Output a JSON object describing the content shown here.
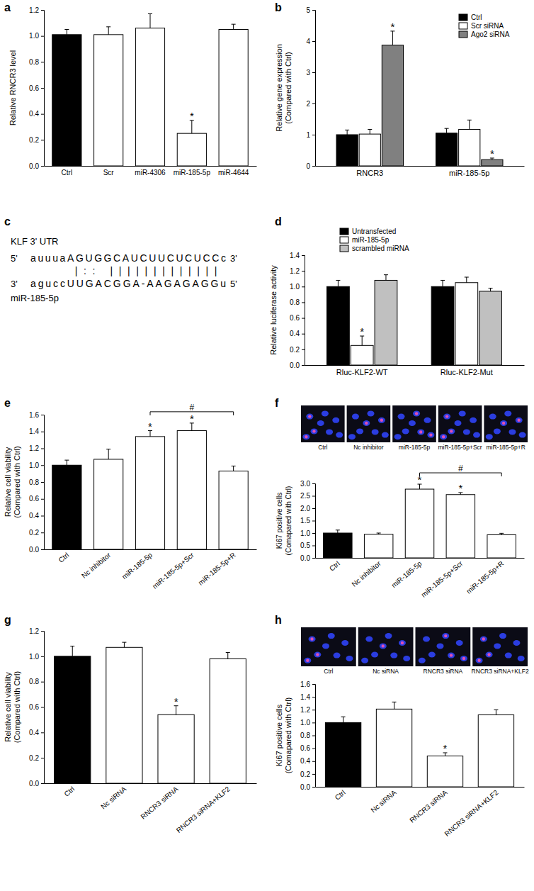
{
  "chart_data": [
    {
      "type": "bar",
      "title": "a",
      "categories": [
        "Ctrl",
        "Scr",
        "miR-4306",
        "miR-185-5p",
        "miR-4644"
      ],
      "values": [
        1.01,
        1.01,
        1.06,
        0.25,
        1.05
      ],
      "errors": [
        0.04,
        0.06,
        0.11,
        0.1,
        0.04
      ],
      "colors": [
        "#000000",
        "#ffffff",
        "#ffffff",
        "#ffffff",
        "#ffffff"
      ],
      "significance": [
        null,
        null,
        null,
        "*",
        null
      ],
      "ylabel": [
        "Relative RNCR3 level"
      ],
      "ylim": [
        0,
        1.2
      ],
      "yticks": [
        {
          "value": 0,
          "label": "0.0"
        },
        0.2,
        0.4,
        0.6,
        0.8,
        {
          "value": 1,
          "label": "1.0"
        },
        1.2
      ]
    },
    {
      "type": "bar",
      "title": "b",
      "categories": [
        "RNCR3",
        "miR-185-5p"
      ],
      "series": [
        {
          "name": "Ctrl",
          "color": "#000000",
          "values": [
            1.0,
            1.05
          ],
          "errors": [
            0.15,
            0.15
          ]
        },
        {
          "name": "Scr siRNA",
          "color": "#ffffff",
          "values": [
            1.02,
            1.17
          ],
          "errors": [
            0.15,
            0.3
          ]
        },
        {
          "name": "Ago2 siRNA",
          "color": "#808080",
          "values": [
            3.87,
            0.2
          ],
          "errors": [
            0.45,
            0.05
          ],
          "significance": [
            "*",
            "*"
          ]
        }
      ],
      "legend": "top-right",
      "ylabel": [
        "Relative gene expression",
        "(Compared with Ctrl)"
      ],
      "ylim": [
        0,
        5
      ],
      "yticks": [
        0,
        1,
        2,
        3,
        4,
        5
      ]
    },
    {
      "type": "alignment",
      "title": "c",
      "target": {
        "name": "KLF 3' UTR",
        "five": "5'",
        "sequence": "auuuaAGUGGCAUCUUCUCUCCc",
        "three": "3'"
      },
      "pairing": "     |:: ||||||||||||| ",
      "mirna": {
        "name": "miR-185-5p",
        "three": "3'",
        "sequence": "aguccUUGACGGA-AAGAGAGGu",
        "five": "5'"
      }
    },
    {
      "type": "bar",
      "title": "d",
      "categories": [
        "Rluc-KLF2-WT",
        "Rluc-KLF2-Mut"
      ],
      "series": [
        {
          "name": "Untransfected",
          "color": "#000000",
          "values": [
            1.0,
            1.0
          ],
          "errors": [
            0.08,
            0.08
          ]
        },
        {
          "name": "miR-185-5p",
          "color": "#ffffff",
          "values": [
            0.25,
            1.05
          ],
          "errors": [
            0.12,
            0.07
          ],
          "significance": [
            "*",
            null
          ]
        },
        {
          "name": "scrambled miRNA",
          "color": "#c0c0c0",
          "values": [
            1.08,
            0.94
          ],
          "errors": [
            0.07,
            0.04
          ]
        }
      ],
      "legend": "top",
      "ylabel": [
        "Relative luciferase activity"
      ],
      "ylim": [
        0,
        1.4
      ],
      "yticks": [
        {
          "value": 0,
          "label": "0.0"
        },
        0.2,
        0.4,
        0.6,
        0.8,
        {
          "value": 1,
          "label": "1.0"
        },
        1.2,
        1.4
      ]
    },
    {
      "type": "bar",
      "title": "e",
      "categories": [
        "Ctrl",
        "Nc inhibitor",
        "miR-185-5p",
        "miR-185-5p+Scr",
        "miR-185-5p+R"
      ],
      "values": [
        1.0,
        1.07,
        1.34,
        1.41,
        0.93
      ],
      "errors": [
        0.06,
        0.12,
        0.07,
        0.09,
        0.06
      ],
      "colors": [
        "#000000",
        "#ffffff",
        "#ffffff",
        "#ffffff",
        "#ffffff"
      ],
      "significance": [
        null,
        null,
        "*",
        "*",
        null
      ],
      "brackets": [
        {
          "from": "miR-185-5p",
          "to": "miR-185-5p+R",
          "label": "#"
        }
      ],
      "ylabel": [
        "Relative cell viability",
        "(Compared with Ctrl)"
      ],
      "ylim": [
        0,
        1.6
      ],
      "yticks": [
        {
          "value": 0,
          "label": "0.0"
        },
        0.2,
        0.4,
        0.6,
        0.8,
        {
          "value": 1,
          "label": "1.0"
        },
        1.2,
        1.4,
        1.6
      ]
    },
    {
      "type": "bar",
      "title": "f",
      "categories": [
        "Ctrl",
        "Nc inhibitor",
        "miR-185-5p",
        "miR-185-5p+Scr",
        "miR-185-5p+R"
      ],
      "values": [
        1.0,
        0.95,
        2.77,
        2.55,
        0.93
      ],
      "errors": [
        0.12,
        0.05,
        0.2,
        0.08,
        0.06
      ],
      "colors": [
        "#000000",
        "#ffffff",
        "#ffffff",
        "#ffffff",
        "#ffffff"
      ],
      "significance": [
        null,
        null,
        "*",
        "*",
        null
      ],
      "brackets": [
        {
          "from": "miR-185-5p",
          "to": "miR-185-5p+R",
          "label": "#"
        }
      ],
      "ylabel": [
        "Ki67 positive cells",
        "(Comapared with Ctrl)"
      ],
      "ylim": [
        0,
        3
      ],
      "yticks": [
        {
          "value": 0,
          "label": "0.0"
        },
        0.5,
        {
          "value": 1,
          "label": "1.0"
        },
        1.5,
        {
          "value": 2,
          "label": "2.0"
        },
        2.5,
        {
          "value": 3,
          "label": "3.0"
        }
      ]
    },
    {
      "type": "bar",
      "title": "g",
      "categories": [
        "Ctrl",
        "Nc siRNA",
        "RNCR3 siRNA",
        "RNCR3 siRNA+KLF2"
      ],
      "values": [
        1.0,
        1.07,
        0.54,
        0.98
      ],
      "errors": [
        0.08,
        0.04,
        0.07,
        0.05
      ],
      "colors": [
        "#000000",
        "#ffffff",
        "#ffffff",
        "#ffffff"
      ],
      "significance": [
        null,
        null,
        "*",
        null
      ],
      "ylabel": [
        "Relative cell viability",
        "(Compared with Ctrl)"
      ],
      "ylim": [
        0,
        1.2
      ],
      "yticks": [
        {
          "value": 0,
          "label": "0.0"
        },
        0.2,
        0.4,
        0.6,
        0.8,
        {
          "value": 1,
          "label": "1.0"
        },
        1.2
      ]
    },
    {
      "type": "bar",
      "title": "h",
      "categories": [
        "Ctrl",
        "Nc siRNA",
        "RNCR3 siRNA",
        "RNCR3 siRNA+KLF2"
      ],
      "values": [
        1.0,
        1.21,
        0.48,
        1.12
      ],
      "errors": [
        0.09,
        0.11,
        0.05,
        0.08
      ],
      "colors": [
        "#000000",
        "#ffffff",
        "#ffffff",
        "#ffffff"
      ],
      "significance": [
        null,
        null,
        "*",
        null
      ],
      "ylabel": [
        "Ki67 positive cells",
        "(Comapared with Ctrl)"
      ],
      "ylim": [
        0,
        1.6
      ],
      "yticks": [
        {
          "value": 0,
          "label": "0.0"
        },
        0.2,
        0.4,
        0.6,
        0.8,
        {
          "value": 1,
          "label": "1.0"
        },
        1.2,
        1.4,
        1.6
      ]
    }
  ]
}
